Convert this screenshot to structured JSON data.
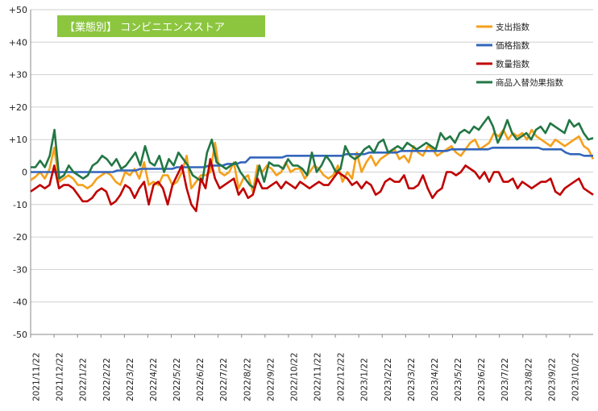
{
  "chart_data": {
    "type": "line",
    "title": "【業態別】 コンビニエンスストア",
    "ylim": [
      -50,
      50
    ],
    "y_ticks": [
      "+50",
      "+40",
      "+30",
      "+20",
      "+10",
      "0",
      "-10",
      "-20",
      "-30",
      "-40",
      "-50"
    ],
    "x_ticks": [
      "2021/11/22",
      "2021/12/22",
      "2022/1/22",
      "2022/2/22",
      "2022/3/22",
      "2022/4/22",
      "2022/5/22",
      "2022/6/22",
      "2022/7/22",
      "2022/8/22",
      "2022/9/22",
      "2022/10/22",
      "2022/11/22",
      "2022/12/22",
      "2023/1/22",
      "2023/2/22",
      "2023/3/22",
      "2023/4/22",
      "2023/5/22",
      "2023/6/22",
      "2023/7/22",
      "2023/8/22",
      "2023/9/22",
      "2023/10/22"
    ],
    "grid": "horizontal",
    "legend_position": "top-right",
    "series": [
      {
        "name": "支出指数",
        "color": "#f5a01a",
        "values": [
          -2.5,
          -1.5,
          0,
          -2,
          1,
          7.5,
          -3,
          -2,
          -1,
          -2,
          -4,
          -4,
          -5,
          -4,
          -2,
          -1,
          0,
          -1,
          -3,
          -4,
          0,
          -1,
          1,
          -2,
          3,
          -4,
          -3,
          -4,
          -1,
          -1,
          -4,
          -3,
          0,
          5,
          -5,
          -3,
          -1,
          -1,
          0,
          9,
          0,
          -1,
          0,
          3,
          -5,
          -2,
          -1,
          -6,
          2,
          0,
          2,
          1,
          -1,
          0,
          3,
          0,
          1,
          1,
          -2,
          0,
          2,
          1,
          -1,
          -2,
          -1,
          2,
          -3,
          0,
          -2,
          6,
          0,
          3,
          5,
          2,
          4,
          5,
          6,
          7,
          4,
          5,
          3,
          8,
          6,
          5,
          8,
          7,
          5,
          6,
          7,
          8,
          6,
          5,
          7,
          9,
          10,
          7,
          8,
          9,
          12,
          11,
          13,
          10,
          12,
          11,
          12,
          10,
          13,
          11,
          10,
          9,
          8,
          10,
          9,
          8,
          9,
          10,
          11,
          8,
          7,
          4
        ]
      },
      {
        "name": "価格指数",
        "color": "#3366bb",
        "values": [
          0,
          0,
          0,
          0,
          0,
          0,
          0,
          0,
          0,
          0,
          0,
          0,
          0,
          0,
          0,
          0,
          0,
          0,
          0,
          0.5,
          0.5,
          0.5,
          0.5,
          0.5,
          1,
          1,
          1,
          1,
          1,
          1,
          1,
          1,
          1.5,
          1.5,
          1.5,
          1.5,
          1.5,
          1.5,
          1.5,
          2,
          2,
          2,
          2,
          2.5,
          2.5,
          2.5,
          3,
          3,
          4.5,
          4.5,
          4.5,
          4.5,
          4.5,
          4.5,
          4.5,
          4.5,
          5,
          5,
          5,
          5,
          5,
          5,
          5,
          5,
          5,
          5,
          5,
          5,
          5,
          5.5,
          5.5,
          5.5,
          5.5,
          5.5,
          6,
          6,
          6,
          6,
          6,
          6,
          6,
          6.5,
          6.5,
          6.5,
          6.5,
          6.5,
          6.5,
          6.5,
          6.5,
          6.5,
          6.5,
          6.5,
          7,
          7,
          7,
          7,
          7,
          7,
          7,
          7,
          7,
          7.5,
          7.5,
          7.5,
          7.5,
          7.5,
          7.5,
          7.5,
          7.5,
          7.5,
          7.5,
          7.5,
          7,
          7,
          7,
          7,
          7,
          6,
          5.5,
          5.5,
          5.5,
          5,
          5,
          5
        ]
      },
      {
        "name": "数量指数",
        "color": "#c00000",
        "values": [
          -6,
          -5,
          -4,
          -5,
          -4,
          2,
          -5,
          -4,
          -4,
          -5,
          -7,
          -9,
          -9,
          -8,
          -6,
          -5,
          -6,
          -10,
          -9,
          -7,
          -4,
          -5,
          -8,
          -5,
          -3,
          -10,
          -4,
          -3,
          -5,
          -10,
          -4,
          -1,
          2,
          -5,
          -10,
          -12,
          -2,
          -5,
          4,
          -2,
          -5,
          -4,
          -3,
          -2,
          -7,
          -5,
          -8,
          -7,
          -2,
          -5,
          -5,
          -4,
          -3,
          -5,
          -3,
          -4,
          -5,
          -3,
          -4,
          -5,
          -4,
          -3,
          -4,
          -4,
          -2,
          0,
          -1,
          -2,
          -4,
          -3,
          -5,
          -3,
          -4,
          -7,
          -6,
          -3,
          -2,
          -3,
          -3,
          -1,
          -5,
          -5,
          -4,
          -1,
          -5,
          -8,
          -6,
          -5,
          0,
          0,
          -1,
          0,
          2,
          1,
          0,
          -2,
          0,
          -3,
          0,
          0,
          -3,
          -3,
          -2,
          -5,
          -3,
          -4,
          -5,
          -4,
          -3,
          -3,
          -2,
          -6,
          -7,
          -5,
          -4,
          -3,
          -2,
          -5,
          -6,
          -7
        ]
      },
      {
        "name": "商品入替効果指数",
        "color": "#227744",
        "values": [
          1.5,
          1.5,
          3.5,
          1.5,
          5,
          13,
          -2,
          -1,
          2,
          0,
          -1,
          -2,
          -1,
          2,
          3,
          5,
          4,
          2,
          4,
          1,
          2,
          4,
          6,
          2,
          8,
          3,
          2,
          5,
          0,
          4,
          2,
          6,
          4,
          2,
          -1,
          -2,
          -3,
          6,
          10,
          3,
          2,
          1,
          2,
          3,
          0,
          -2,
          -4,
          -5,
          2,
          -3,
          3,
          2,
          2,
          1,
          4,
          2,
          2,
          1,
          -1,
          6,
          0,
          2,
          5,
          3,
          0,
          1,
          8,
          5,
          4,
          5,
          7,
          8,
          6,
          9,
          10,
          6,
          7,
          8,
          7,
          9,
          8,
          7,
          8,
          9,
          8,
          7,
          12,
          10,
          11,
          9,
          12,
          13,
          12,
          14,
          13,
          15,
          17,
          14,
          9,
          12,
          16,
          12,
          10,
          11,
          12,
          10,
          13,
          14,
          12,
          15,
          14,
          13,
          12,
          16,
          14,
          15,
          12,
          10,
          10.5
        ]
      }
    ]
  }
}
